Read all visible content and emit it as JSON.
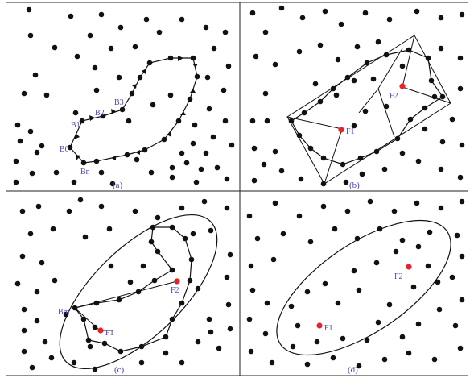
{
  "colors": {
    "dot": "#111111",
    "line": "#111111",
    "focus": "#e8222a",
    "label": "#4a4ab0",
    "caption": "#4a4ab0",
    "frame": "#222222"
  },
  "panel_a": {
    "caption": "(a)",
    "labels": {
      "b0": "B0",
      "b1": "B1",
      "b2": "B2",
      "b3": "B3",
      "bn": "Bn"
    }
  },
  "panel_b": {
    "caption": "(b)",
    "labels": {
      "f1": "F1",
      "f2": "F2"
    }
  },
  "panel_c": {
    "caption": "(c)",
    "labels": {
      "bm": "Bm",
      "f1": "F1",
      "f2": "F2"
    }
  },
  "panel_d": {
    "caption": "(d)",
    "labels": {
      "f1": "F1",
      "f2": "F2"
    }
  }
}
